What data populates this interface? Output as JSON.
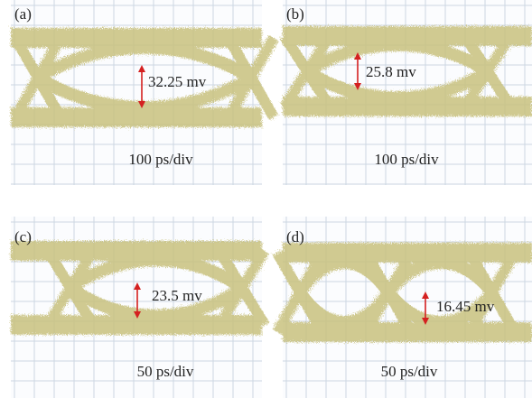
{
  "panels": [
    {
      "label": "(a)",
      "eye_opening": "32.25 mv",
      "time_scale": "100 ps/div"
    },
    {
      "label": "(b)",
      "eye_opening": "25.8 mv",
      "time_scale": "100 ps/div"
    },
    {
      "label": "(c)",
      "eye_opening": "23.5 mv",
      "time_scale": "50 ps/div"
    },
    {
      "label": "(d)",
      "eye_opening": "16.45 mv",
      "time_scale": "50 ps/div"
    }
  ]
}
